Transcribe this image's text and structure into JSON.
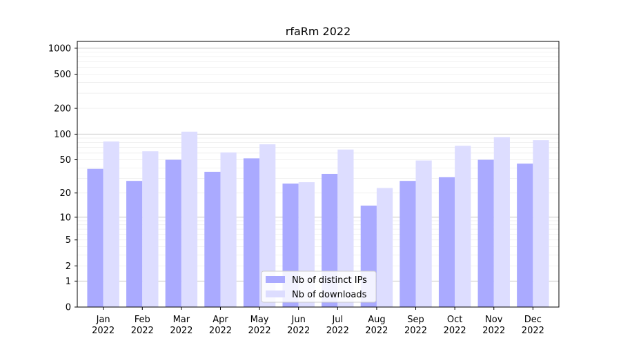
{
  "chart_data": {
    "type": "bar",
    "title": "rfaRm 2022",
    "xlabel": "",
    "ylabel": "",
    "y_scale": "log (1 + y)",
    "ylim": [
      0,
      1200
    ],
    "y_ticks": [
      0,
      1,
      2,
      5,
      10,
      20,
      50,
      100,
      200,
      500,
      1000
    ],
    "categories": [
      "Jan",
      "Feb",
      "Mar",
      "Apr",
      "May",
      "Jun",
      "Jul",
      "Aug",
      "Sep",
      "Oct",
      "Nov",
      "Dec"
    ],
    "category_sublabel": "2022",
    "series": [
      {
        "name": "Nb of distinct IPs",
        "color": "#aaaaff",
        "values": [
          39,
          28,
          50,
          36,
          52,
          26,
          34,
          14,
          28,
          31,
          50,
          45
        ]
      },
      {
        "name": "Nb of downloads",
        "color": "#ddddff",
        "values": [
          82,
          63,
          107,
          61,
          76,
          27,
          66,
          23,
          49,
          73,
          92,
          85
        ]
      }
    ],
    "grid": true,
    "legend_position": "bottom-center"
  }
}
